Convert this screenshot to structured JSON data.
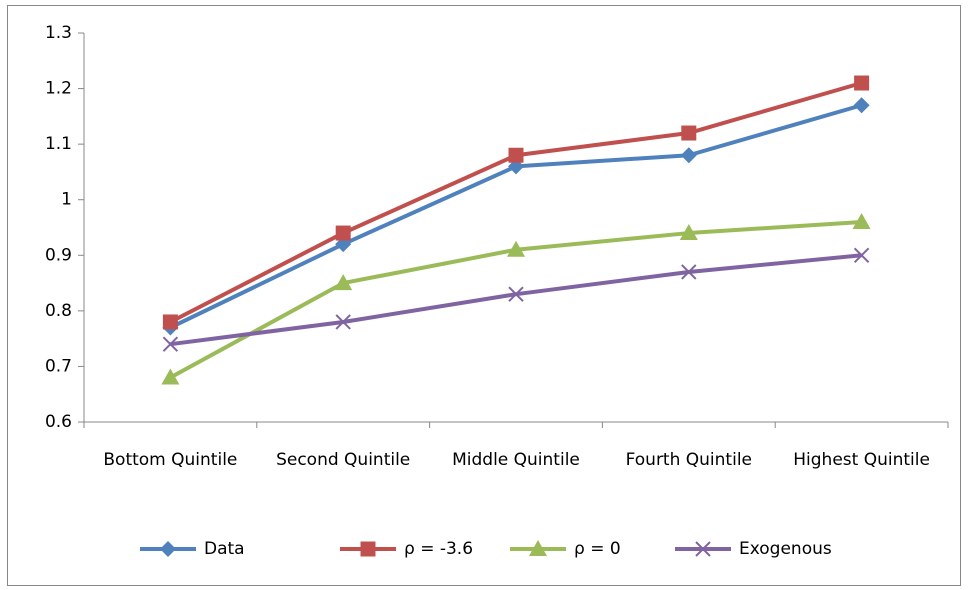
{
  "chart_data": {
    "type": "line",
    "categories": [
      "Bottom Quintile",
      "Second Quintile",
      "Middle Quintile",
      "Fourth Quintile",
      "Highest Quintile"
    ],
    "series": [
      {
        "name": "Data",
        "color": "#4f81bd",
        "marker": "diamond",
        "values": [
          0.77,
          0.92,
          1.06,
          1.08,
          1.17
        ]
      },
      {
        "name": "ρ = -3.6",
        "color": "#c0504d",
        "marker": "square",
        "values": [
          0.78,
          0.94,
          1.08,
          1.12,
          1.21
        ]
      },
      {
        "name": "ρ = 0",
        "color": "#9bbb59",
        "marker": "triangle",
        "values": [
          0.68,
          0.85,
          0.91,
          0.94,
          0.96
        ]
      },
      {
        "name": "Exogenous",
        "color": "#8064a2",
        "marker": "x",
        "values": [
          0.74,
          0.78,
          0.83,
          0.87,
          0.9
        ]
      }
    ],
    "ylim": [
      0.6,
      1.3
    ],
    "yticks": [
      0.6,
      0.7,
      0.8,
      0.9,
      1,
      1.1,
      1.2,
      1.3
    ],
    "grid": false,
    "legend": "bottom"
  }
}
